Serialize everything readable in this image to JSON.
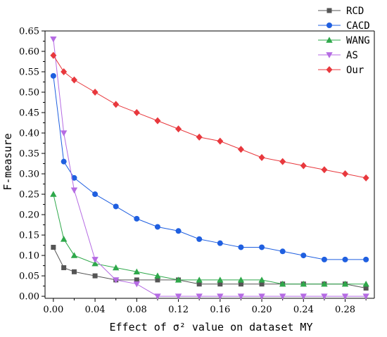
{
  "chart_data": {
    "type": "line",
    "title": "",
    "xlabel": "Effect of σ² value on dataset MY",
    "ylabel": "F-measure",
    "xlim": [
      -0.008,
      0.308
    ],
    "ylim": [
      -0.005,
      0.65
    ],
    "x_ticks": [
      0.0,
      0.04,
      0.08,
      0.12,
      0.16,
      0.2,
      0.24,
      0.28
    ],
    "x_tick_labels": [
      "0.00",
      "0.04",
      "0.08",
      "0.12",
      "0.16",
      "0.20",
      "0.24",
      "0.28"
    ],
    "y_ticks": [
      0.0,
      0.05,
      0.1,
      0.15,
      0.2,
      0.25,
      0.3,
      0.35,
      0.4,
      0.45,
      0.5,
      0.55,
      0.6,
      0.65
    ],
    "y_tick_labels": [
      "0.00",
      "0.05",
      "0.10",
      "0.15",
      "0.20",
      "0.25",
      "0.30",
      "0.35",
      "0.40",
      "0.45",
      "0.50",
      "0.55",
      "0.60",
      "0.65"
    ],
    "grid": false,
    "legend_position": "top-right, outside plot",
    "x": [
      0.0,
      0.01,
      0.02,
      0.04,
      0.06,
      0.08,
      0.1,
      0.12,
      0.14,
      0.16,
      0.18,
      0.2,
      0.22,
      0.24,
      0.26,
      0.28,
      0.3
    ],
    "series": [
      {
        "name": "RCD",
        "color": "#555555",
        "marker": "square",
        "values": [
          0.12,
          0.07,
          0.06,
          0.05,
          0.04,
          0.04,
          0.04,
          0.04,
          0.03,
          0.03,
          0.03,
          0.03,
          0.03,
          0.03,
          0.03,
          0.03,
          0.02
        ]
      },
      {
        "name": "CACD",
        "color": "#1f5fe0",
        "marker": "circle",
        "values": [
          0.54,
          0.33,
          0.29,
          0.25,
          0.22,
          0.19,
          0.17,
          0.16,
          0.14,
          0.13,
          0.12,
          0.12,
          0.11,
          0.1,
          0.09,
          0.09,
          0.09
        ]
      },
      {
        "name": "WANG",
        "color": "#2ea84a",
        "marker": "triangle-up",
        "values": [
          0.25,
          0.14,
          0.1,
          0.08,
          0.07,
          0.06,
          0.05,
          0.04,
          0.04,
          0.04,
          0.04,
          0.04,
          0.03,
          0.03,
          0.03,
          0.03,
          0.03
        ]
      },
      {
        "name": "AS",
        "color": "#b56be3",
        "marker": "triangle-down",
        "values": [
          0.63,
          0.4,
          0.26,
          0.09,
          0.04,
          0.03,
          0.0,
          0.0,
          0.0,
          0.0,
          0.0,
          0.0,
          0.0,
          0.0,
          0.0,
          0.0,
          0.0
        ]
      },
      {
        "name": "Our",
        "color": "#e8383d",
        "marker": "diamond",
        "values": [
          0.59,
          0.55,
          0.53,
          0.5,
          0.47,
          0.45,
          0.43,
          0.41,
          0.39,
          0.38,
          0.36,
          0.34,
          0.33,
          0.32,
          0.31,
          0.3,
          0.29
        ]
      }
    ]
  }
}
